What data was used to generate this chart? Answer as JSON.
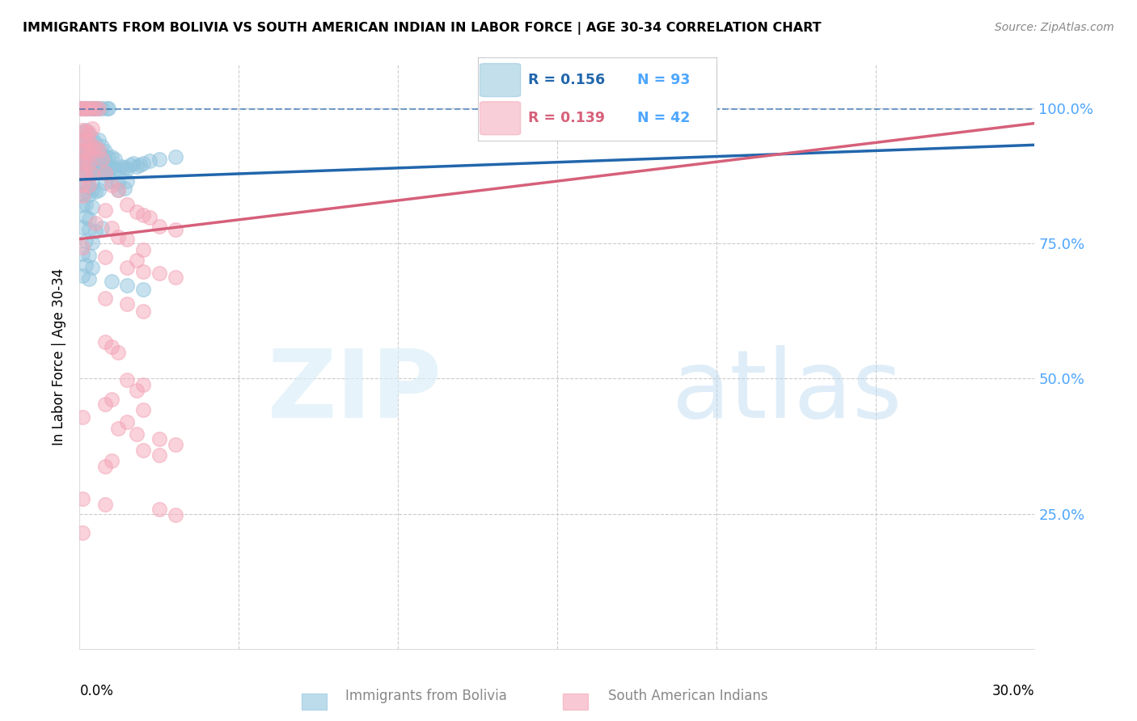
{
  "title": "IMMIGRANTS FROM BOLIVIA VS SOUTH AMERICAN INDIAN IN LABOR FORCE | AGE 30-34 CORRELATION CHART",
  "source": "Source: ZipAtlas.com",
  "ylabel": "In Labor Force | Age 30-34",
  "xlim": [
    0.0,
    0.3
  ],
  "ylim": [
    0.0,
    1.08
  ],
  "yticks": [
    0.0,
    0.25,
    0.5,
    0.75,
    1.0
  ],
  "ytick_labels": [
    "",
    "25.0%",
    "50.0%",
    "75.0%",
    "100.0%"
  ],
  "blue_color": "#92c5de",
  "pink_color": "#f4a6b8",
  "blue_line_color": "#2166ac",
  "pink_line_color": "#d6607a",
  "right_axis_color": "#4da6ff",
  "dashed_line_y": [
    0.995,
    0.995
  ],
  "blue_trendline_x": [
    0.0,
    0.3
  ],
  "blue_trendline_y": [
    0.868,
    0.932
  ],
  "pink_trendline_x": [
    0.0,
    0.3
  ],
  "pink_trendline_y": [
    0.758,
    0.972
  ],
  "bolivia_points": [
    [
      0.0005,
      1.0
    ],
    [
      0.0015,
      1.0
    ],
    [
      0.002,
      1.0
    ],
    [
      0.003,
      1.0
    ],
    [
      0.004,
      1.0
    ],
    [
      0.0045,
      1.0
    ],
    [
      0.005,
      1.0
    ],
    [
      0.006,
      1.0
    ],
    [
      0.007,
      1.0
    ],
    [
      0.0085,
      1.0
    ],
    [
      0.009,
      1.0
    ],
    [
      0.001,
      0.955
    ],
    [
      0.002,
      0.96
    ],
    [
      0.003,
      0.95
    ],
    [
      0.001,
      0.935
    ],
    [
      0.002,
      0.94
    ],
    [
      0.003,
      0.93
    ],
    [
      0.004,
      0.945
    ],
    [
      0.001,
      0.92
    ],
    [
      0.002,
      0.925
    ],
    [
      0.003,
      0.915
    ],
    [
      0.004,
      0.928
    ],
    [
      0.005,
      0.935
    ],
    [
      0.006,
      0.942
    ],
    [
      0.007,
      0.93
    ],
    [
      0.001,
      0.905
    ],
    [
      0.002,
      0.91
    ],
    [
      0.003,
      0.9
    ],
    [
      0.004,
      0.912
    ],
    [
      0.005,
      0.918
    ],
    [
      0.006,
      0.922
    ],
    [
      0.007,
      0.915
    ],
    [
      0.008,
      0.92
    ],
    [
      0.001,
      0.89
    ],
    [
      0.002,
      0.895
    ],
    [
      0.003,
      0.885
    ],
    [
      0.004,
      0.898
    ],
    [
      0.005,
      0.9
    ],
    [
      0.006,
      0.905
    ],
    [
      0.007,
      0.898
    ],
    [
      0.008,
      0.902
    ],
    [
      0.009,
      0.908
    ],
    [
      0.01,
      0.91
    ],
    [
      0.011,
      0.905
    ],
    [
      0.001,
      0.875
    ],
    [
      0.002,
      0.878
    ],
    [
      0.003,
      0.872
    ],
    [
      0.004,
      0.88
    ],
    [
      0.005,
      0.882
    ],
    [
      0.006,
      0.888
    ],
    [
      0.007,
      0.882
    ],
    [
      0.008,
      0.885
    ],
    [
      0.009,
      0.888
    ],
    [
      0.01,
      0.89
    ],
    [
      0.011,
      0.885
    ],
    [
      0.012,
      0.888
    ],
    [
      0.013,
      0.892
    ],
    [
      0.014,
      0.89
    ],
    [
      0.015,
      0.888
    ],
    [
      0.016,
      0.895
    ],
    [
      0.017,
      0.898
    ],
    [
      0.018,
      0.892
    ],
    [
      0.019,
      0.895
    ],
    [
      0.02,
      0.898
    ],
    [
      0.022,
      0.902
    ],
    [
      0.025,
      0.905
    ],
    [
      0.03,
      0.91
    ],
    [
      0.001,
      0.858
    ],
    [
      0.002,
      0.862
    ],
    [
      0.003,
      0.855
    ],
    [
      0.004,
      0.86
    ],
    [
      0.008,
      0.862
    ],
    [
      0.01,
      0.865
    ],
    [
      0.012,
      0.862
    ],
    [
      0.015,
      0.865
    ],
    [
      0.001,
      0.842
    ],
    [
      0.002,
      0.845
    ],
    [
      0.003,
      0.84
    ],
    [
      0.004,
      0.848
    ],
    [
      0.005,
      0.845
    ],
    [
      0.006,
      0.848
    ],
    [
      0.001,
      0.82
    ],
    [
      0.002,
      0.822
    ],
    [
      0.004,
      0.818
    ],
    [
      0.002,
      0.8
    ],
    [
      0.003,
      0.795
    ],
    [
      0.001,
      0.78
    ],
    [
      0.003,
      0.775
    ],
    [
      0.005,
      0.772
    ],
    [
      0.007,
      0.778
    ],
    [
      0.002,
      0.755
    ],
    [
      0.004,
      0.752
    ],
    [
      0.001,
      0.73
    ],
    [
      0.003,
      0.728
    ],
    [
      0.002,
      0.71
    ],
    [
      0.004,
      0.705
    ],
    [
      0.001,
      0.69
    ],
    [
      0.003,
      0.685
    ],
    [
      0.01,
      0.68
    ],
    [
      0.015,
      0.672
    ],
    [
      0.02,
      0.665
    ],
    [
      0.012,
      0.848
    ],
    [
      0.014,
      0.852
    ]
  ],
  "indian_points": [
    [
      0.0005,
      1.0
    ],
    [
      0.001,
      1.0
    ],
    [
      0.0015,
      1.0
    ],
    [
      0.002,
      1.0
    ],
    [
      0.003,
      1.0
    ],
    [
      0.004,
      1.0
    ],
    [
      0.005,
      1.0
    ],
    [
      0.006,
      1.0
    ],
    [
      0.001,
      0.96
    ],
    [
      0.002,
      0.958
    ],
    [
      0.003,
      0.955
    ],
    [
      0.004,
      0.962
    ],
    [
      0.001,
      0.94
    ],
    [
      0.002,
      0.942
    ],
    [
      0.003,
      0.938
    ],
    [
      0.001,
      0.92
    ],
    [
      0.002,
      0.922
    ],
    [
      0.003,
      0.918
    ],
    [
      0.004,
      0.925
    ],
    [
      0.005,
      0.928
    ],
    [
      0.006,
      0.922
    ],
    [
      0.001,
      0.9
    ],
    [
      0.002,
      0.902
    ],
    [
      0.003,
      0.898
    ],
    [
      0.007,
      0.905
    ],
    [
      0.008,
      0.88
    ],
    [
      0.001,
      0.878
    ],
    [
      0.002,
      0.875
    ],
    [
      0.004,
      0.878
    ],
    [
      0.001,
      0.858
    ],
    [
      0.003,
      0.858
    ],
    [
      0.01,
      0.858
    ],
    [
      0.012,
      0.848
    ],
    [
      0.001,
      0.838
    ],
    [
      0.015,
      0.822
    ],
    [
      0.008,
      0.812
    ],
    [
      0.018,
      0.808
    ],
    [
      0.02,
      0.802
    ],
    [
      0.022,
      0.798
    ],
    [
      0.005,
      0.788
    ],
    [
      0.025,
      0.782
    ],
    [
      0.01,
      0.778
    ],
    [
      0.03,
      0.775
    ],
    [
      0.012,
      0.762
    ],
    [
      0.015,
      0.758
    ],
    [
      0.001,
      0.742
    ],
    [
      0.02,
      0.738
    ],
    [
      0.008,
      0.725
    ],
    [
      0.018,
      0.718
    ],
    [
      0.015,
      0.705
    ],
    [
      0.02,
      0.698
    ],
    [
      0.025,
      0.695
    ],
    [
      0.03,
      0.688
    ],
    [
      0.008,
      0.648
    ],
    [
      0.015,
      0.638
    ],
    [
      0.02,
      0.625
    ],
    [
      0.008,
      0.568
    ],
    [
      0.01,
      0.558
    ],
    [
      0.012,
      0.548
    ],
    [
      0.015,
      0.498
    ],
    [
      0.02,
      0.488
    ],
    [
      0.018,
      0.478
    ],
    [
      0.01,
      0.462
    ],
    [
      0.008,
      0.452
    ],
    [
      0.02,
      0.442
    ],
    [
      0.001,
      0.428
    ],
    [
      0.015,
      0.42
    ],
    [
      0.012,
      0.408
    ],
    [
      0.018,
      0.398
    ],
    [
      0.025,
      0.388
    ],
    [
      0.03,
      0.378
    ],
    [
      0.02,
      0.368
    ],
    [
      0.025,
      0.358
    ],
    [
      0.01,
      0.348
    ],
    [
      0.008,
      0.338
    ],
    [
      0.001,
      0.278
    ],
    [
      0.008,
      0.268
    ],
    [
      0.025,
      0.258
    ],
    [
      0.03,
      0.248
    ],
    [
      0.001,
      0.215
    ]
  ]
}
